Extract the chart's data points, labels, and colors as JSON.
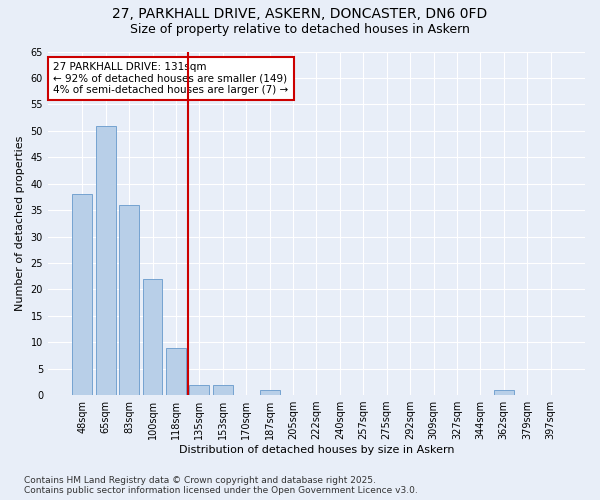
{
  "title_line1": "27, PARKHALL DRIVE, ASKERN, DONCASTER, DN6 0FD",
  "title_line2": "Size of property relative to detached houses in Askern",
  "xlabel": "Distribution of detached houses by size in Askern",
  "ylabel": "Number of detached properties",
  "categories": [
    "48sqm",
    "65sqm",
    "83sqm",
    "100sqm",
    "118sqm",
    "135sqm",
    "153sqm",
    "170sqm",
    "187sqm",
    "205sqm",
    "222sqm",
    "240sqm",
    "257sqm",
    "275sqm",
    "292sqm",
    "309sqm",
    "327sqm",
    "344sqm",
    "362sqm",
    "379sqm",
    "397sqm"
  ],
  "values": [
    38,
    51,
    36,
    22,
    9,
    2,
    2,
    0,
    1,
    0,
    0,
    0,
    0,
    0,
    0,
    0,
    0,
    0,
    1,
    0,
    0
  ],
  "bar_color": "#b8cfe8",
  "bar_edge_color": "#6699cc",
  "vline_index": 5,
  "highlight_color": "#cc0000",
  "annotation_title": "27 PARKHALL DRIVE: 131sqm",
  "annotation_line1": "← 92% of detached houses are smaller (149)",
  "annotation_line2": "4% of semi-detached houses are larger (7) →",
  "annotation_box_color": "#cc0000",
  "ylim_max": 65,
  "yticks": [
    0,
    5,
    10,
    15,
    20,
    25,
    30,
    35,
    40,
    45,
    50,
    55,
    60,
    65
  ],
  "footer_line1": "Contains HM Land Registry data © Crown copyright and database right 2025.",
  "footer_line2": "Contains public sector information licensed under the Open Government Licence v3.0.",
  "bg_color": "#e8eef8",
  "grid_color": "#ffffff",
  "title_fontsize": 10,
  "subtitle_fontsize": 9,
  "axis_label_fontsize": 8,
  "tick_fontsize": 7,
  "annotation_fontsize": 7.5,
  "footer_fontsize": 6.5
}
